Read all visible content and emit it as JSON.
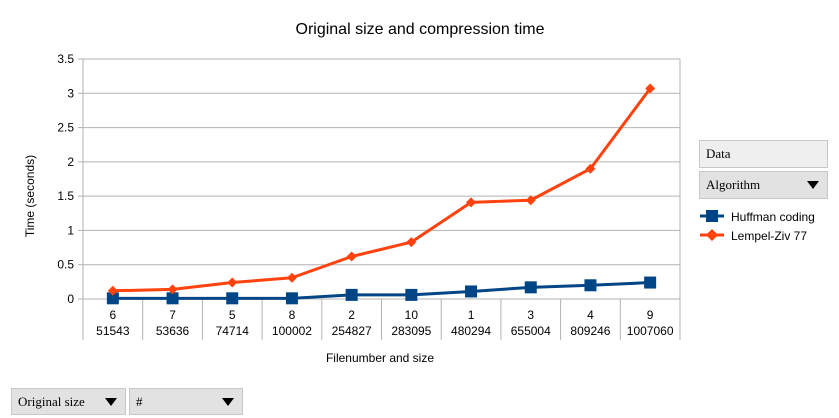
{
  "chart_data": {
    "type": "line",
    "title": "Original size and compression time",
    "xlabel": "Filenumber and size",
    "ylabel": "Time (seconds)",
    "ylim": [
      0,
      3.5
    ],
    "yticks": [
      "0",
      "0.5",
      "1",
      "1.5",
      "2",
      "2.5",
      "3",
      "3.5"
    ],
    "categories": [
      {
        "number": "6",
        "size": "51543"
      },
      {
        "number": "7",
        "size": "53636"
      },
      {
        "number": "5",
        "size": "74714"
      },
      {
        "number": "8",
        "size": "100002"
      },
      {
        "number": "2",
        "size": "254827"
      },
      {
        "number": "10",
        "size": "283095"
      },
      {
        "number": "1",
        "size": "480294"
      },
      {
        "number": "3",
        "size": "655004"
      },
      {
        "number": "4",
        "size": "809246"
      },
      {
        "number": "9",
        "size": "1007060"
      }
    ],
    "series": [
      {
        "name": "Huffman coding",
        "color": "#004586",
        "marker": "square",
        "values": [
          0.01,
          0.01,
          0.01,
          0.01,
          0.06,
          0.06,
          0.11,
          0.17,
          0.2,
          0.24
        ]
      },
      {
        "name": "Lempel-Ziv 77",
        "color": "#ff420e",
        "marker": "diamond",
        "values": [
          0.12,
          0.14,
          0.24,
          0.31,
          0.62,
          0.83,
          1.41,
          1.44,
          1.9,
          3.07
        ]
      }
    ],
    "grid": "horizontal",
    "legend_position": "right"
  },
  "pivot": {
    "data_field": "Data",
    "column_field": "Algorithm",
    "row_fields": [
      "Original size",
      "#"
    ]
  }
}
